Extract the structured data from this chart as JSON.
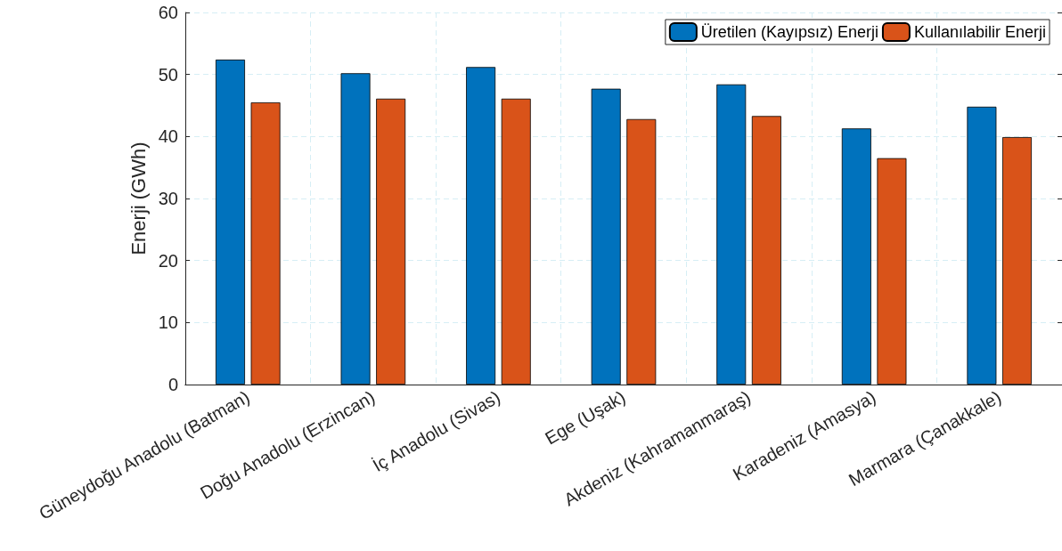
{
  "chart_data": {
    "type": "bar",
    "ylabel": "Enerji (GWh)",
    "categories": [
      "Güneydoğu Anadolu (Batman)",
      "Doğu Anadolu (Erzincan)",
      "İç Anadolu (Sivas)",
      "Ege (Uşak)",
      "Akdeniz (Kahramanmaraş)",
      "Karadeniz (Amasya)",
      "Marmara (Çanakkale)"
    ],
    "series": [
      {
        "name": "Üretilen (Kayıpsız) Enerji",
        "color": "#0072bd",
        "values": [
          52.4,
          50.2,
          51.2,
          47.7,
          48.4,
          41.3,
          44.8
        ]
      },
      {
        "name": "Kullanılabilir Enerji",
        "color": "#d95319",
        "values": [
          45.5,
          46.1,
          46.1,
          42.8,
          43.3,
          36.5,
          39.9
        ]
      }
    ],
    "ylim": [
      0,
      60
    ],
    "yticks": [
      0,
      10,
      20,
      30,
      40,
      50,
      60
    ],
    "grid": true,
    "legend": "top right"
  }
}
